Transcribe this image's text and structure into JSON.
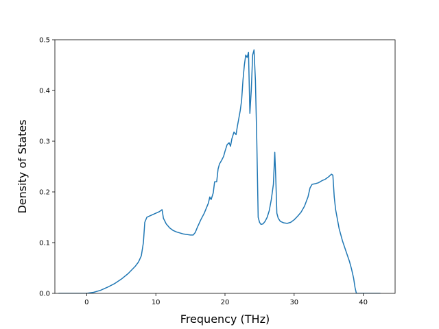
{
  "chart_data": {
    "type": "line",
    "title": "",
    "xlabel": "Frequency (THz)",
    "ylabel": "Density of States",
    "xlim": [
      -4.6,
      44.6
    ],
    "ylim": [
      0.0,
      0.5
    ],
    "xticks": [
      0,
      10,
      20,
      30,
      40
    ],
    "yticks": [
      0.0,
      0.1,
      0.2,
      0.3,
      0.4,
      0.5
    ],
    "xtick_labels": [
      "0",
      "10",
      "20",
      "30",
      "40"
    ],
    "ytick_labels": [
      "0.0",
      "0.1",
      "0.2",
      "0.3",
      "0.4",
      "0.5"
    ],
    "grid": false,
    "legend": false,
    "line_color": "#1f77b4",
    "series": [
      {
        "x": [
          -4.0,
          -2.0,
          0.0,
          1.0,
          2.0,
          3.0,
          4.0,
          5.0,
          6.0,
          7.0,
          7.5,
          7.9,
          8.2,
          8.4,
          8.7,
          9.0,
          9.5,
          10.0,
          10.5,
          10.9,
          11.1,
          11.5,
          12.0,
          12.5,
          13.0,
          13.5,
          14.0,
          14.5,
          15.0,
          15.4,
          15.7,
          16.0,
          16.5,
          17.0,
          17.3,
          17.6,
          17.8,
          18.0,
          18.3,
          18.5,
          18.8,
          19.0,
          19.2,
          19.5,
          19.8,
          20.0,
          20.3,
          20.6,
          20.8,
          21.0,
          21.3,
          21.6,
          21.8,
          22.0,
          22.2,
          22.4,
          22.6,
          22.8,
          23.0,
          23.2,
          23.4,
          23.6,
          23.8,
          24.0,
          24.2,
          24.4,
          24.6,
          24.8,
          25.0,
          25.2,
          25.5,
          25.8,
          26.1,
          26.4,
          26.7,
          27.0,
          27.2,
          27.35,
          27.5,
          27.7,
          28.0,
          28.5,
          29.0,
          29.5,
          30.0,
          30.5,
          31.0,
          31.5,
          32.0,
          32.3,
          32.6,
          33.0,
          33.5,
          34.0,
          34.5,
          35.0,
          35.4,
          35.6,
          35.8,
          36.0,
          36.5,
          37.0,
          37.5,
          38.0,
          38.3,
          38.6,
          38.8,
          39.0,
          40.0,
          41.0,
          42.4
        ],
        "y": [
          0.0,
          0.0,
          0.0,
          0.002,
          0.006,
          0.012,
          0.019,
          0.028,
          0.039,
          0.053,
          0.062,
          0.074,
          0.1,
          0.14,
          0.15,
          0.152,
          0.155,
          0.158,
          0.161,
          0.165,
          0.148,
          0.137,
          0.129,
          0.124,
          0.121,
          0.119,
          0.117,
          0.116,
          0.115,
          0.115,
          0.12,
          0.13,
          0.145,
          0.158,
          0.168,
          0.178,
          0.19,
          0.185,
          0.198,
          0.22,
          0.22,
          0.245,
          0.255,
          0.262,
          0.27,
          0.28,
          0.293,
          0.297,
          0.29,
          0.305,
          0.318,
          0.313,
          0.33,
          0.345,
          0.36,
          0.38,
          0.42,
          0.45,
          0.47,
          0.465,
          0.475,
          0.355,
          0.4,
          0.47,
          0.48,
          0.42,
          0.3,
          0.15,
          0.14,
          0.136,
          0.137,
          0.142,
          0.15,
          0.163,
          0.185,
          0.215,
          0.278,
          0.225,
          0.158,
          0.148,
          0.142,
          0.139,
          0.138,
          0.14,
          0.145,
          0.152,
          0.16,
          0.172,
          0.19,
          0.208,
          0.215,
          0.216,
          0.218,
          0.222,
          0.225,
          0.23,
          0.235,
          0.233,
          0.19,
          0.165,
          0.128,
          0.103,
          0.083,
          0.063,
          0.048,
          0.03,
          0.012,
          0.0,
          0.0,
          0.0,
          0.0
        ]
      }
    ]
  }
}
